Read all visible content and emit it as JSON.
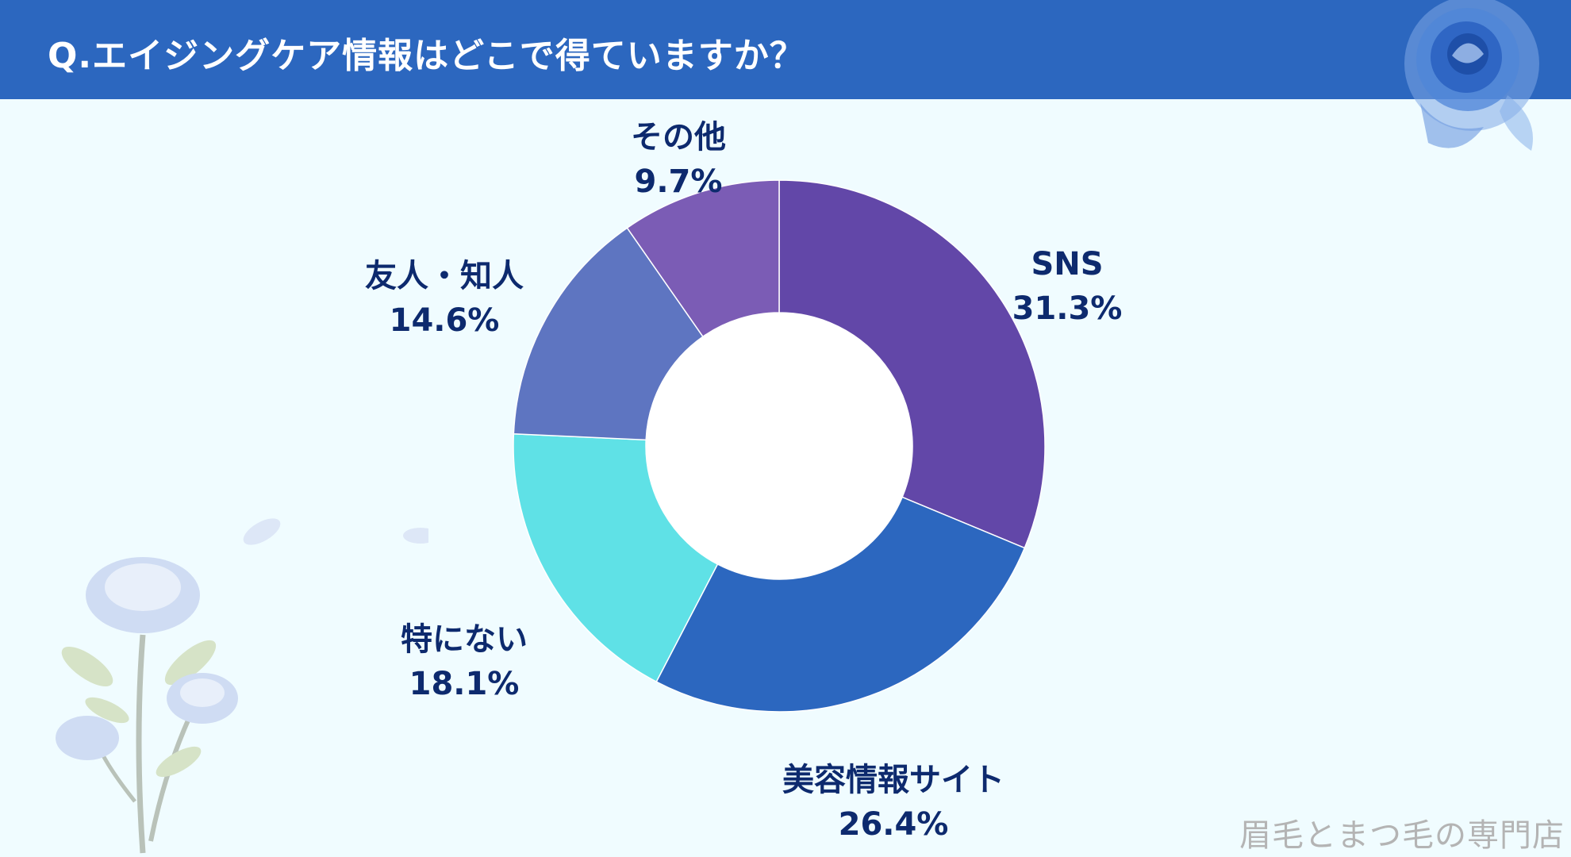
{
  "header": {
    "title": "Q.エイジングケア情報はどこで得ていますか？"
  },
  "chart_data": {
    "type": "pie",
    "donut": true,
    "slices": [
      {
        "label": "SNS",
        "value": 31.3,
        "value_text": "31.3%",
        "color": "#6247a8"
      },
      {
        "label": "美容情報サイト",
        "value": 26.4,
        "value_text": "26.4%",
        "color": "#2c67bf"
      },
      {
        "label": "特にない",
        "value": 18.1,
        "value_text": "18.1%",
        "color": "#5fe1e6"
      },
      {
        "label": "友人・知人",
        "value": 14.6,
        "value_text": "14.6%",
        "color": "#5e75c1"
      },
      {
        "label": "その他",
        "value": 9.7,
        "value_text": "9.7%",
        "color": "#7b5cb5"
      }
    ]
  },
  "colors": {
    "header_bg": "#2c67bf",
    "page_bg": "#f0fcff",
    "label_text": "#0d2a6e"
  },
  "decorations": {
    "top_right": "blue-rose-icon",
    "bottom_left": "blue-rose-branch-icon"
  },
  "watermark": "眉毛とまつ毛の専門店"
}
